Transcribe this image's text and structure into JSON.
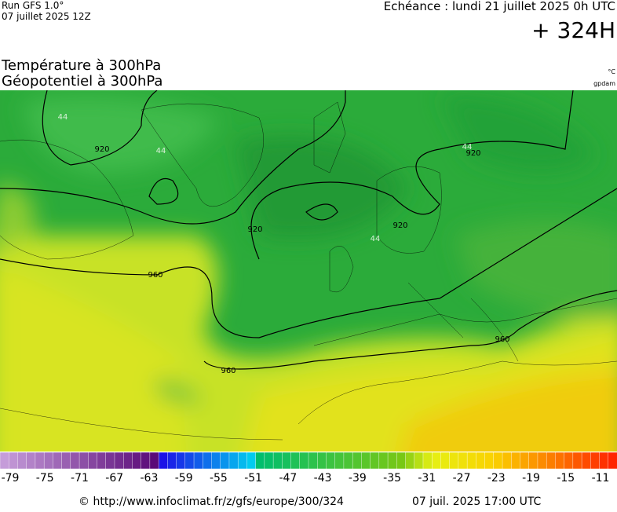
{
  "header": {
    "run": "Run GFS 1.0°",
    "run_date": "07 juillet 2025 12Z",
    "valid": "Echéance : lundi 21 juillet 2025 0h UTC",
    "lead": "+ 324H"
  },
  "map": {
    "title_line1": "Température à 300hPa",
    "title_line2": "Géopotentiel à 300hPa",
    "unit_temp": "°C",
    "unit_geo": "gpdam",
    "contour_labels": [
      "920",
      "920",
      "920",
      "920",
      "960",
      "960",
      "960",
      "44",
      "44",
      "44",
      "44"
    ]
  },
  "scale": {
    "labels": [
      "-79",
      "-75",
      "-71",
      "-67",
      "-63",
      "-59",
      "-55",
      "-51",
      "-47",
      "-43",
      "-39",
      "-35",
      "-31",
      "-27",
      "-23",
      "-19",
      "-15",
      "-11"
    ]
  },
  "footer": {
    "url": "© http://www.infoclimat.fr/z/gfs/europe/300/324",
    "generated": "07 juil. 2025 17:00 UTC"
  }
}
